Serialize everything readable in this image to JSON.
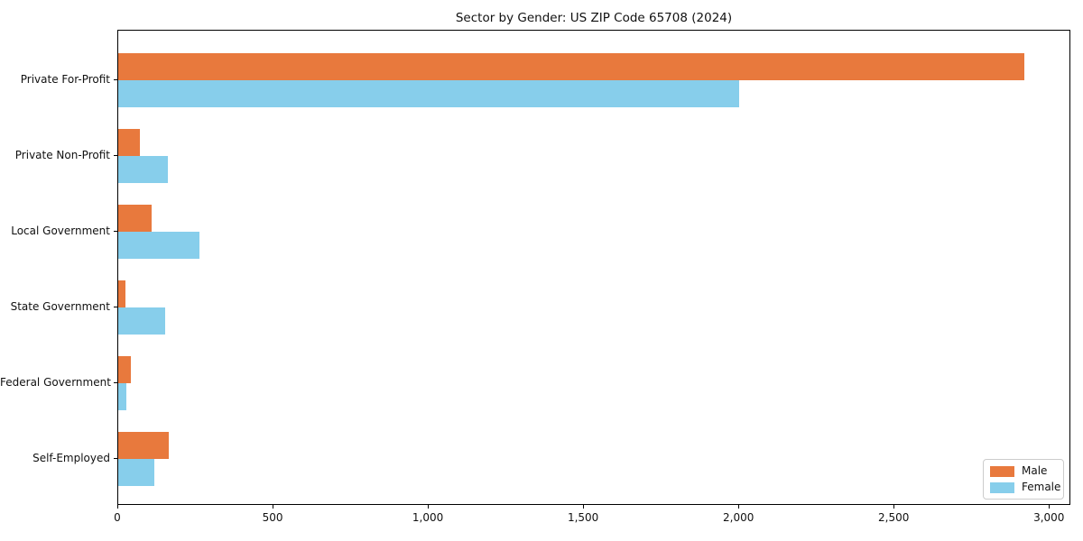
{
  "figure": {
    "background": "#ffffff",
    "spine_color": "#000000",
    "text_color": "#111111"
  },
  "chart_data": {
    "type": "bar",
    "orientation": "horizontal",
    "title": "Sector by Gender: US ZIP Code 65708 (2024)",
    "xlabel": "",
    "ylabel": "",
    "categories": [
      "Private For-Profit",
      "Private Non-Profit",
      "Local Government",
      "State Government",
      "Federal Government",
      "Self-Employed"
    ],
    "series": [
      {
        "name": "Male",
        "color": "#e8793d",
        "values": [
          2918,
          70,
          107,
          23,
          40,
          164
        ]
      },
      {
        "name": "Female",
        "color": "#87ceeb",
        "values": [
          2000,
          159,
          261,
          151,
          25,
          117
        ]
      }
    ],
    "xlim": [
      0,
      3069
    ],
    "x_ticks": [
      0,
      500,
      1000,
      1500,
      2000,
      2500,
      3000
    ],
    "x_tick_labels": [
      "0",
      "500",
      "1,000",
      "1,500",
      "2,000",
      "2,500",
      "3,000"
    ],
    "grid": false,
    "legend": {
      "position": "lower right",
      "entries": [
        "Male",
        "Female"
      ]
    }
  }
}
